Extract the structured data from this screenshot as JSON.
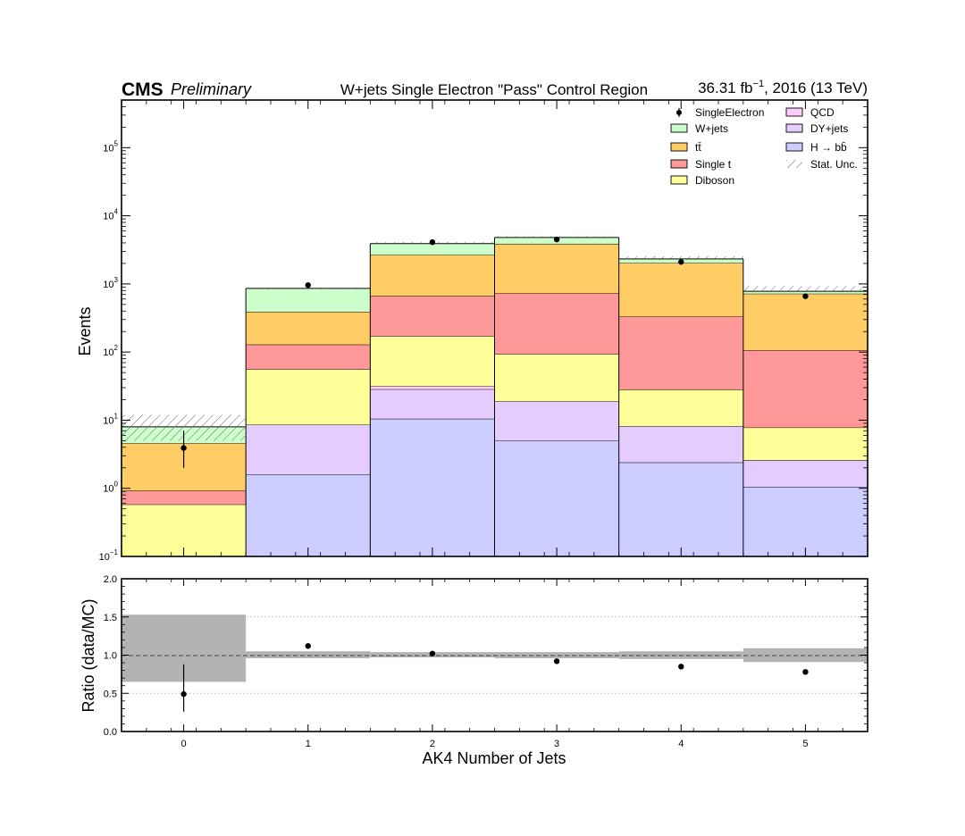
{
  "header": {
    "experiment": "CMS",
    "status": "Preliminary",
    "title": "W+jets Single Electron \"Pass\" Control Region",
    "lumi_value": "36.31 fb",
    "lumi_exp": "−1",
    "lumi_rest": ", 2016 (13 TeV)"
  },
  "colors": {
    "WJets": "#ccffcc",
    "TT": "#ffcc66",
    "SingleTop": "#ff9999",
    "Diboson": "#ffff99",
    "QCD": "#ffccff",
    "DYJets": "#e5ccff",
    "Hbb": "#ccccff",
    "ratio_band": "#b3b3b3"
  },
  "chart_data": [
    {
      "type": "bar",
      "stacked": true,
      "log_y": true,
      "ylabel": "Events",
      "ylim": [
        0.1,
        500000
      ],
      "xlim": [
        -0.5,
        5.5
      ],
      "categories": [
        "0",
        "1",
        "2",
        "3",
        "4",
        "5"
      ],
      "bin_edges": [
        -0.5,
        0.5,
        1.5,
        2.5,
        3.5,
        4.5,
        5.5
      ],
      "y_ticks": [
        {
          "value": 0.1,
          "base": "10",
          "exp": "−1"
        },
        {
          "value": 1,
          "base": "10",
          "exp": "0"
        },
        {
          "value": 10,
          "base": "10",
          "exp": "1"
        },
        {
          "value": 100,
          "base": "10",
          "exp": "2"
        },
        {
          "value": 1000,
          "base": "10",
          "exp": "3"
        },
        {
          "value": 10000,
          "base": "10",
          "exp": "4"
        },
        {
          "value": 100000,
          "base": "10",
          "exp": "5"
        }
      ],
      "stack_order": [
        "Hbb",
        "DYJets",
        "QCD",
        "Diboson",
        "SingleTop",
        "TT",
        "WJets"
      ],
      "series": [
        {
          "key": "Hbb",
          "legend": "H → bb̄",
          "values": [
            0,
            1.6,
            10.5,
            5.0,
            2.4,
            1.05
          ]
        },
        {
          "key": "DYJets",
          "legend": "DY+jets",
          "values": [
            0,
            7.0,
            18.0,
            14.0,
            5.8,
            1.55
          ]
        },
        {
          "key": "QCD",
          "legend": "QCD",
          "values": [
            0,
            0,
            3.0,
            0,
            0,
            0
          ]
        },
        {
          "key": "Diboson",
          "legend": "Diboson",
          "values": [
            0.58,
            47.4,
            139.5,
            75.0,
            20.0,
            5.2
          ]
        },
        {
          "key": "SingleTop",
          "legend": "Single t",
          "values": [
            0.34,
            73.0,
            493.0,
            634.0,
            303.8,
            98.2
          ]
        },
        {
          "key": "TT",
          "legend": "tt̄",
          "values": [
            3.68,
            262.0,
            2011.0,
            3154.0,
            1698.0,
            613.0
          ]
        },
        {
          "key": "WJets",
          "legend": "W+jets",
          "values": [
            3.4,
            470.0,
            1235.0,
            920.0,
            300.0,
            60.0
          ]
        }
      ],
      "data": {
        "name": "SingleElectron",
        "values": [
          3.9,
          960,
          4100,
          4500,
          2100,
          660
        ],
        "err_low": [
          1.9,
          31,
          64,
          67,
          46,
          26
        ],
        "err_high": [
          3.1,
          31,
          64,
          67,
          46,
          26
        ]
      },
      "stat_unc": {
        "name": "Stat. Unc.",
        "low": [
          5.0,
          830,
          3800,
          4700,
          2250,
          780
        ],
        "high": [
          12.0,
          880,
          4120,
          5000,
          2550,
          930
        ]
      }
    },
    {
      "type": "scatter",
      "ylabel": "Ratio (data/MC)",
      "xlabel": "AK4 Number of Jets",
      "ylim": [
        0.0,
        2.0
      ],
      "y_ticks": [
        "0.0",
        "0.5",
        "1.0",
        "1.5",
        "2.0"
      ],
      "x": [
        0,
        1,
        2,
        3,
        4,
        5
      ],
      "values": [
        0.49,
        1.12,
        1.02,
        0.92,
        0.85,
        0.78
      ],
      "err_low": [
        0.23,
        0,
        0,
        0,
        0,
        0
      ],
      "err_high": [
        0.39,
        0,
        0,
        0,
        0,
        0
      ],
      "band_low": [
        0.65,
        0.96,
        0.97,
        0.96,
        0.95,
        0.91
      ],
      "band_high": [
        1.53,
        1.05,
        1.04,
        1.04,
        1.05,
        1.09
      ]
    }
  ]
}
